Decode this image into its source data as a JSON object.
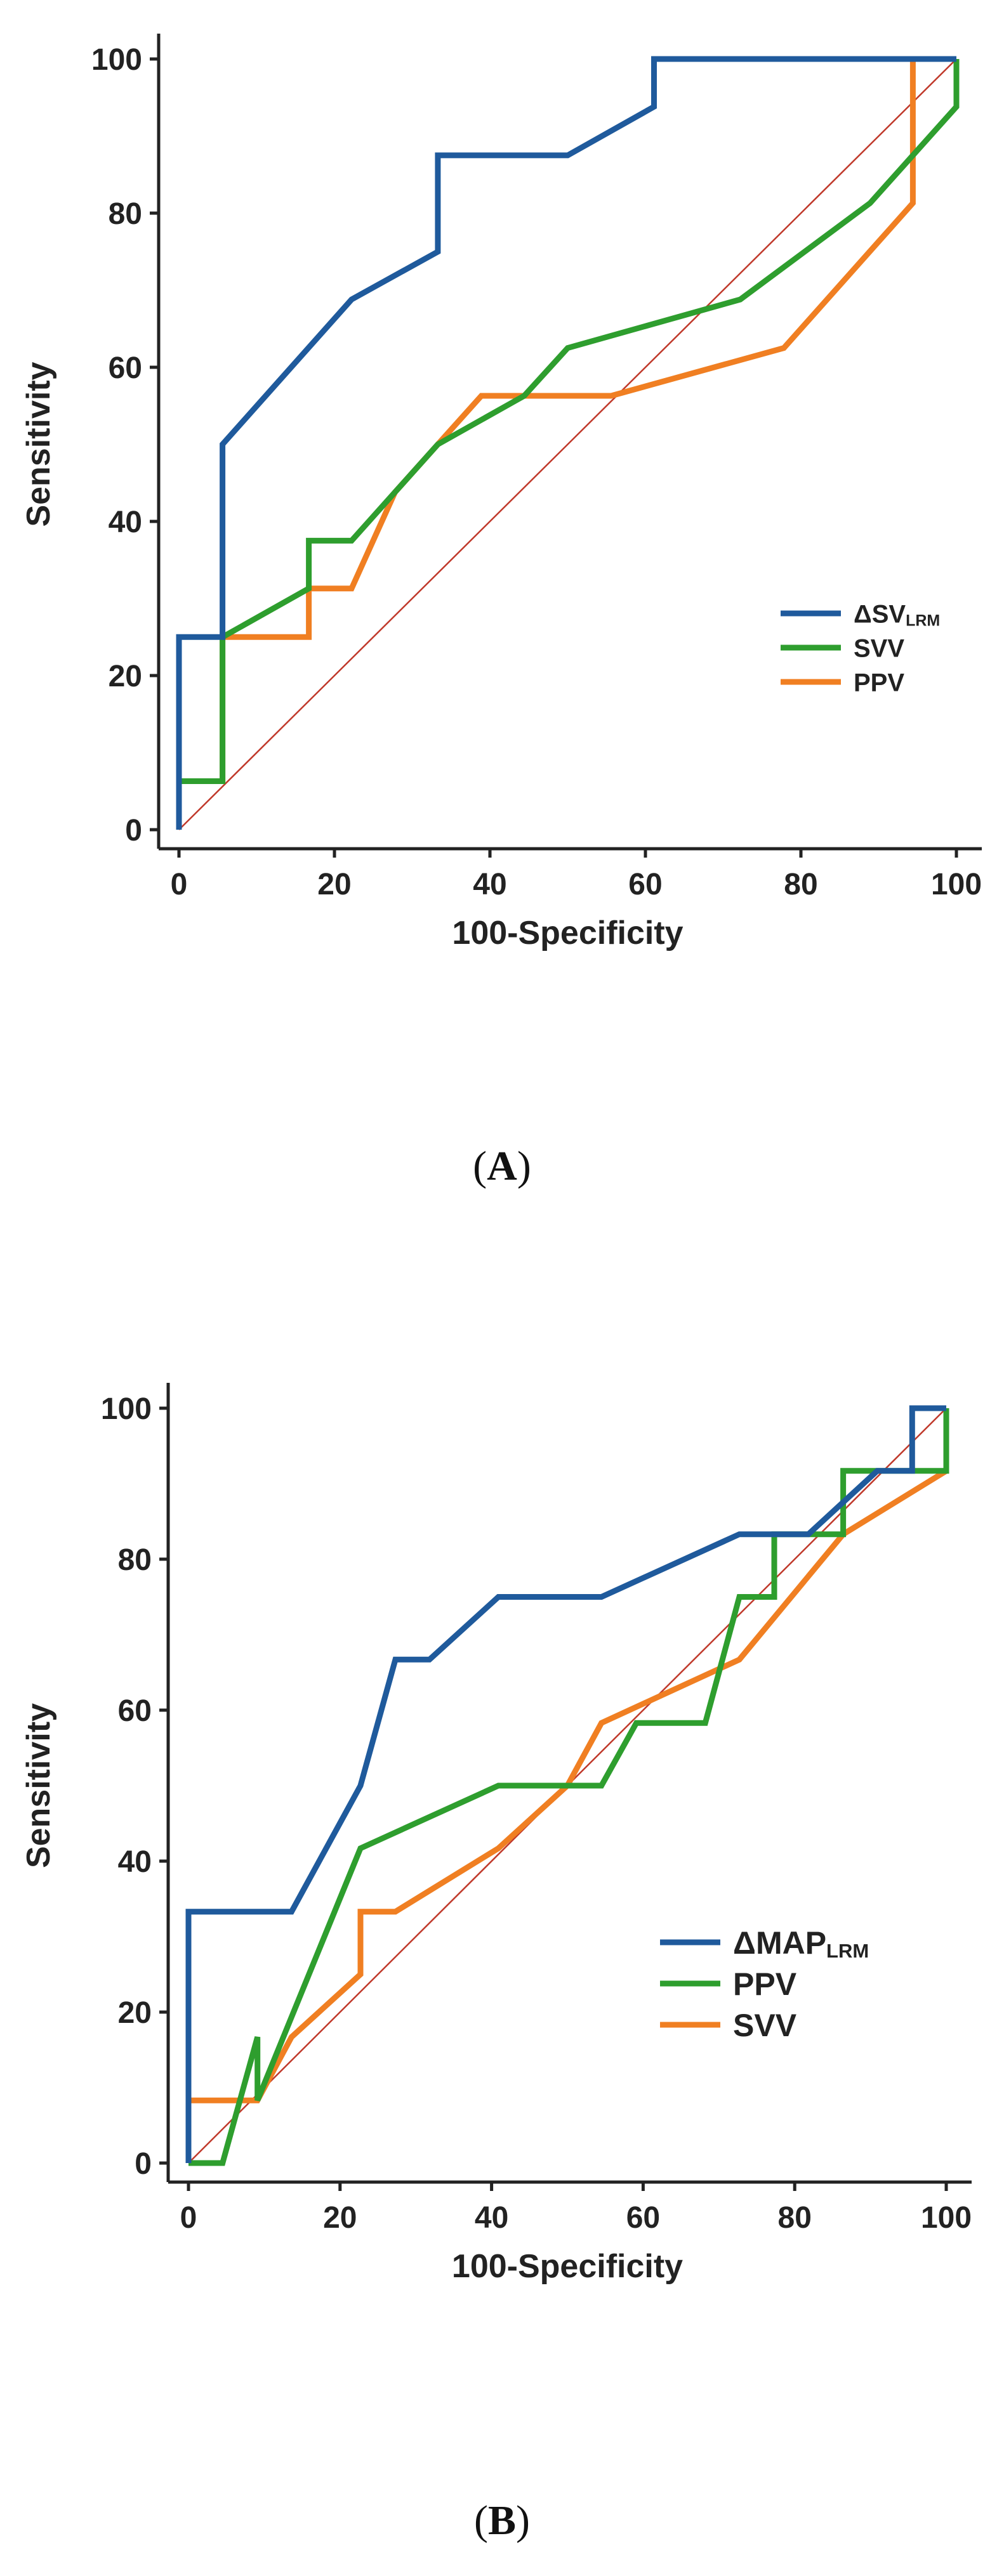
{
  "chart_data": [
    {
      "type": "line",
      "panel_label": "A",
      "panel_label_paren_open": "(",
      "panel_label_paren_close": ")",
      "xlabel": "100-Specificity",
      "ylabel": "Sensitivity",
      "xlim": [
        0,
        100
      ],
      "ylim": [
        0,
        100
      ],
      "xticks": [
        0,
        20,
        40,
        60,
        80,
        100
      ],
      "yticks": [
        0,
        20,
        40,
        60,
        80,
        100
      ],
      "grid": false,
      "legend_position": "bottom-right",
      "reference_line": {
        "from": [
          0,
          0
        ],
        "to": [
          100,
          100
        ],
        "color": "#c0392b"
      },
      "series": [
        {
          "name": "ΔSV",
          "subscript": "LRM",
          "color": "#1f5a9c",
          "points": [
            [
              0,
              0
            ],
            [
              0,
              25
            ],
            [
              5.6,
              25
            ],
            [
              5.6,
              50
            ],
            [
              22.2,
              68.8
            ],
            [
              33.3,
              75
            ],
            [
              33.3,
              87.5
            ],
            [
              50,
              87.5
            ],
            [
              61.1,
              93.8
            ],
            [
              61.1,
              100
            ],
            [
              100,
              100
            ]
          ]
        },
        {
          "name": "SVV",
          "subscript": "",
          "color": "#2e9e2e",
          "points": [
            [
              0,
              0
            ],
            [
              0,
              6.3
            ],
            [
              5.6,
              6.3
            ],
            [
              5.6,
              25
            ],
            [
              16.7,
              31.3
            ],
            [
              16.7,
              37.5
            ],
            [
              22.2,
              37.5
            ],
            [
              27.8,
              43.8
            ],
            [
              33.3,
              50
            ],
            [
              44.4,
              56.3
            ],
            [
              50,
              62.5
            ],
            [
              72.2,
              68.8
            ],
            [
              88.9,
              81.3
            ],
            [
              94.4,
              87.5
            ],
            [
              100,
              93.8
            ],
            [
              100,
              100
            ]
          ]
        },
        {
          "name": "PPV",
          "subscript": "",
          "color": "#f07f22",
          "points": [
            [
              0,
              0
            ],
            [
              0,
              6.3
            ],
            [
              5.6,
              6.3
            ],
            [
              5.6,
              25
            ],
            [
              16.7,
              25
            ],
            [
              16.7,
              31.3
            ],
            [
              22.2,
              31.3
            ],
            [
              27.8,
              43.8
            ],
            [
              33.3,
              50
            ],
            [
              38.9,
              56.3
            ],
            [
              55.6,
              56.3
            ],
            [
              77.8,
              62.5
            ],
            [
              94.4,
              81.3
            ],
            [
              94.4,
              100
            ],
            [
              100,
              100
            ]
          ]
        }
      ]
    },
    {
      "type": "line",
      "panel_label": "B",
      "panel_label_paren_open": "(",
      "panel_label_paren_close": ")",
      "xlabel": "100-Specificity",
      "ylabel": "Sensitivity",
      "xlim": [
        0,
        100
      ],
      "ylim": [
        0,
        100
      ],
      "xticks": [
        0,
        20,
        40,
        60,
        80,
        100
      ],
      "yticks": [
        0,
        20,
        40,
        60,
        80,
        100
      ],
      "grid": false,
      "legend_position": "bottom-right",
      "reference_line": {
        "from": [
          0,
          0
        ],
        "to": [
          100,
          100
        ],
        "color": "#c0392b"
      },
      "series": [
        {
          "name": "ΔMAP",
          "subscript": "LRM",
          "color": "#1f5a9c",
          "points": [
            [
              0,
              0
            ],
            [
              0,
              33.3
            ],
            [
              13.6,
              33.3
            ],
            [
              22.7,
              50
            ],
            [
              27.3,
              66.7
            ],
            [
              31.8,
              66.7
            ],
            [
              40.9,
              75
            ],
            [
              54.5,
              75
            ],
            [
              72.7,
              83.3
            ],
            [
              81.8,
              83.3
            ],
            [
              90.9,
              91.7
            ],
            [
              95.5,
              91.7
            ],
            [
              95.5,
              100
            ],
            [
              100,
              100
            ]
          ]
        },
        {
          "name": "PPV",
          "subscript": "",
          "color": "#2e9e2e",
          "points": [
            [
              0,
              0
            ],
            [
              4.5,
              0
            ],
            [
              9.1,
              16.7
            ],
            [
              9.1,
              8.3
            ],
            [
              22.7,
              41.7
            ],
            [
              40.9,
              50
            ],
            [
              54.5,
              50
            ],
            [
              59.1,
              58.3
            ],
            [
              68.2,
              58.3
            ],
            [
              72.7,
              75
            ],
            [
              77.3,
              75
            ],
            [
              77.3,
              83.3
            ],
            [
              86.4,
              83.3
            ],
            [
              86.4,
              91.7
            ],
            [
              100,
              91.7
            ],
            [
              100,
              100
            ]
          ]
        },
        {
          "name": "SVV",
          "subscript": "",
          "color": "#f07f22",
          "points": [
            [
              0,
              0
            ],
            [
              0,
              8.3
            ],
            [
              9.1,
              8.3
            ],
            [
              13.6,
              16.7
            ],
            [
              22.7,
              25
            ],
            [
              22.7,
              33.3
            ],
            [
              27.3,
              33.3
            ],
            [
              40.9,
              41.7
            ],
            [
              50,
              50
            ],
            [
              54.5,
              58.3
            ],
            [
              72.7,
              66.7
            ],
            [
              86.4,
              83.3
            ],
            [
              100,
              91.7
            ],
            [
              100,
              100
            ]
          ]
        }
      ]
    }
  ]
}
